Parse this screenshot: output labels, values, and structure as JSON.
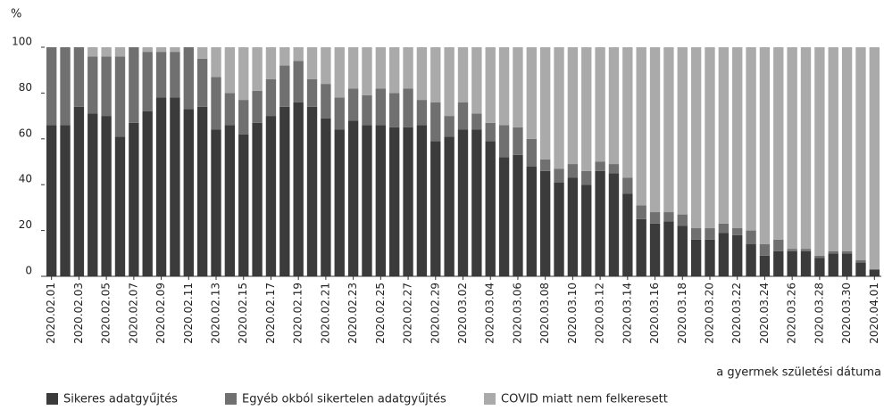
{
  "chart_data": {
    "type": "stacked_bar",
    "y_unit_label": "%",
    "x_label": "a gyermek születési dátuma",
    "categories": [
      "2020.02.01",
      null,
      "2020.02.03",
      null,
      "2020.02.05",
      null,
      "2020.02.07",
      null,
      "2020.02.09",
      null,
      "2020.02.11",
      null,
      "2020.02.13",
      null,
      "2020.02.15",
      null,
      "2020.02.17",
      null,
      "2020.02.19",
      null,
      "2020.02.21",
      null,
      "2020.02.23",
      null,
      "2020.02.25",
      null,
      "2020.02.27",
      null,
      "2020.02.29",
      null,
      "2020.03.02",
      null,
      "2020.03.04",
      null,
      "2020.03.06",
      null,
      "2020.03.08",
      null,
      "2020.03.10",
      null,
      "2020.03.12",
      null,
      "2020.03.14",
      null,
      "2020.03.16",
      null,
      "2020.03.18",
      null,
      "2020.03.20",
      null,
      "2020.03.22",
      null,
      "2020.03.24",
      null,
      "2020.03.26",
      null,
      "2020.03.28",
      null,
      "2020.03.30",
      null,
      "2020.04.01"
    ],
    "series": [
      {
        "name": "Sikeres adatgyűjtés",
        "color": "#3b3b3b",
        "values": [
          66,
          66,
          74,
          71,
          70,
          61,
          67,
          72,
          78,
          78,
          73,
          74,
          64,
          66,
          62,
          67,
          70,
          74,
          76,
          74,
          69,
          64,
          68,
          66,
          66,
          65,
          65,
          66,
          59,
          61,
          64,
          64,
          59,
          52,
          53,
          48,
          46,
          41,
          43,
          40,
          46,
          45,
          36,
          25,
          23,
          24,
          22,
          16,
          16,
          19,
          18,
          14,
          9,
          11,
          11,
          11,
          8,
          10,
          10,
          6,
          3
        ]
      },
      {
        "name": "Egyéb okból sikertelen adatgyűjtés",
        "color": "#707070",
        "values": [
          34,
          34,
          26,
          25,
          26,
          35,
          33,
          26,
          20,
          20,
          27,
          21,
          23,
          14,
          15,
          14,
          16,
          18,
          18,
          12,
          15,
          14,
          14,
          13,
          16,
          15,
          17,
          11,
          17,
          9,
          12,
          7,
          8,
          14,
          12,
          12,
          5,
          6,
          6,
          6,
          4,
          4,
          7,
          6,
          5,
          4,
          5,
          5,
          5,
          4,
          3,
          6,
          5,
          5,
          1,
          1,
          1,
          1,
          1,
          1,
          0
        ]
      },
      {
        "name": "COVID miatt nem felkeresett",
        "color": "#aaaaaa",
        "values": [
          0,
          0,
          0,
          4,
          4,
          4,
          0,
          2,
          2,
          2,
          0,
          5,
          13,
          20,
          23,
          19,
          14,
          8,
          6,
          14,
          16,
          22,
          18,
          21,
          18,
          20,
          18,
          23,
          24,
          30,
          24,
          29,
          33,
          34,
          35,
          40,
          49,
          53,
          51,
          54,
          50,
          51,
          57,
          69,
          72,
          72,
          73,
          79,
          79,
          77,
          79,
          80,
          86,
          84,
          88,
          88,
          91,
          89,
          89,
          93,
          97
        ]
      }
    ],
    "ylim": [
      0,
      100
    ],
    "yticks": [
      0,
      20,
      40,
      60,
      80,
      100
    ],
    "grid": false,
    "legend": "bottom"
  }
}
